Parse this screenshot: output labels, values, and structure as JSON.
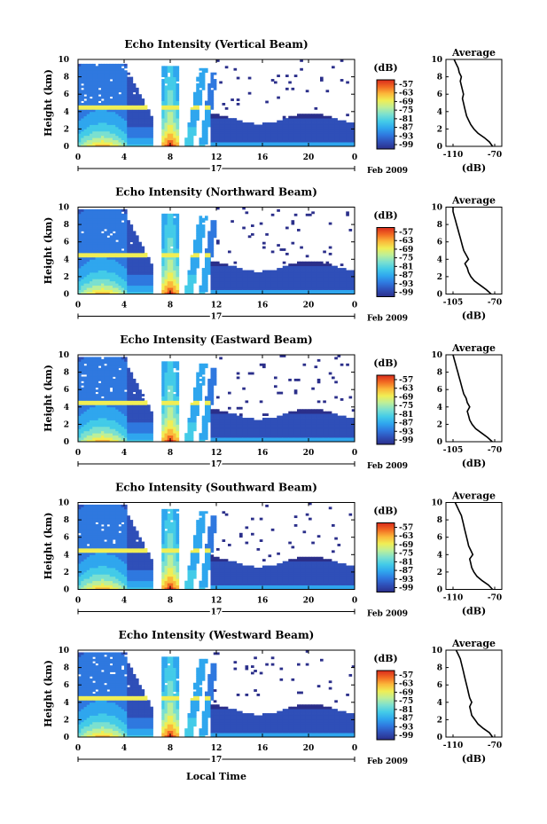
{
  "colors": {
    "scale": [
      "#2b2f8a",
      "#2f4fb8",
      "#2f78df",
      "#2fa6ee",
      "#43cbe8",
      "#7be0d0",
      "#bcef9a",
      "#f0ee55",
      "#fbb83a",
      "#f26a22",
      "#d92b1c"
    ],
    "profile": "#000000"
  },
  "chart_data": {
    "type": "heatmap",
    "panels": [
      {
        "title": "Echo Intensity (Vertical Beam)",
        "ylabel": "Height (km)",
        "x_ticks": [
          "0",
          "4",
          "8",
          "12",
          "16",
          "20",
          "0"
        ],
        "y_ticks": [
          "0",
          "2",
          "4",
          "6",
          "8",
          "10"
        ],
        "xlim": [
          0,
          24
        ],
        "ylim": [
          0,
          10
        ],
        "date_label": "17",
        "month_label": "Feb 2009",
        "colorbar": {
          "unit": "(dB)",
          "ticks": [
            "-57",
            "-63",
            "-69",
            "-75",
            "-81",
            "-87",
            "-93",
            "-99"
          ]
        },
        "profile": {
          "title": "Average",
          "xlabel": "(dB)",
          "x_ticks": [
            "-110",
            "-70"
          ],
          "y_ticks": [
            "0",
            "2",
            "4",
            "6",
            "8",
            "10"
          ],
          "xlim": [
            -110,
            -70
          ],
          "ylim": [
            0,
            10
          ],
          "x": [
            -72,
            -75,
            -80,
            -86,
            -90,
            -93,
            -95,
            -97,
            -98,
            -99,
            -100,
            -101,
            -100,
            -101,
            -102,
            -103,
            -102,
            -104,
            -105,
            -107,
            -109
          ],
          "y": [
            0.0,
            0.5,
            1.0,
            1.5,
            2.0,
            2.5,
            3.0,
            3.5,
            4.0,
            4.5,
            5.0,
            5.5,
            6.0,
            6.5,
            7.0,
            7.5,
            8.0,
            8.5,
            9.0,
            9.5,
            10.0
          ]
        }
      },
      {
        "title": "Echo Intensity (Northward Beam)",
        "ylabel": "Height (km)",
        "x_ticks": [
          "0",
          "4",
          "8",
          "12",
          "16",
          "20",
          "0"
        ],
        "y_ticks": [
          "0",
          "2",
          "4",
          "6",
          "8",
          "10"
        ],
        "xlim": [
          0,
          24
        ],
        "ylim": [
          0,
          10
        ],
        "date_label": "17",
        "month_label": "Feb 2009",
        "colorbar": {
          "unit": "(dB)",
          "ticks": [
            "-57",
            "-63",
            "-69",
            "-75",
            "-81",
            "-87",
            "-93",
            "-99"
          ]
        },
        "profile": {
          "title": "Average",
          "xlabel": "(dB)",
          "x_ticks": [
            "-105",
            "-70"
          ],
          "y_ticks": [
            "0",
            "2",
            "4",
            "6",
            "8",
            "10"
          ],
          "xlim": [
            -105,
            -70
          ],
          "ylim": [
            0,
            10
          ],
          "x": [
            -73,
            -77,
            -82,
            -87,
            -90,
            -92,
            -93,
            -95,
            -92,
            -94,
            -96,
            -97,
            -98,
            -99,
            -100,
            -101,
            -102,
            -103,
            -104,
            -105,
            -105
          ],
          "y": [
            0.0,
            0.5,
            1.0,
            1.5,
            2.0,
            2.5,
            3.0,
            3.5,
            4.0,
            4.5,
            5.0,
            5.5,
            6.0,
            6.5,
            7.0,
            7.5,
            8.0,
            8.5,
            9.0,
            9.5,
            10.0
          ]
        }
      },
      {
        "title": "Echo Intensity (Eastward Beam)",
        "ylabel": "Height (km)",
        "x_ticks": [
          "0",
          "4",
          "8",
          "12",
          "16",
          "20",
          "0"
        ],
        "y_ticks": [
          "0",
          "2",
          "4",
          "6",
          "8",
          "10"
        ],
        "xlim": [
          0,
          24
        ],
        "ylim": [
          0,
          10
        ],
        "date_label": "17",
        "month_label": "Feb 2009",
        "colorbar": {
          "unit": "(dB)",
          "ticks": [
            "-57",
            "-63",
            "-69",
            "-75",
            "-81",
            "-87",
            "-93",
            "-99"
          ]
        },
        "profile": {
          "title": "Average",
          "xlabel": "(dB)",
          "x_ticks": [
            "-105",
            "-70"
          ],
          "y_ticks": [
            "0",
            "2",
            "4",
            "6",
            "8",
            "10"
          ],
          "xlim": [
            -105,
            -70
          ],
          "ylim": [
            0,
            10
          ],
          "x": [
            -72,
            -76,
            -81,
            -86,
            -89,
            -91,
            -92,
            -93,
            -91,
            -93,
            -94,
            -96,
            -97,
            -98,
            -99,
            -100,
            -101,
            -102,
            -103,
            -104,
            -105
          ],
          "y": [
            0.0,
            0.5,
            1.0,
            1.5,
            2.0,
            2.5,
            3.0,
            3.5,
            4.0,
            4.5,
            5.0,
            5.5,
            6.0,
            6.5,
            7.0,
            7.5,
            8.0,
            8.5,
            9.0,
            9.5,
            10.0
          ]
        }
      },
      {
        "title": "Echo Intensity (Southward Beam)",
        "ylabel": "Height (km)",
        "x_ticks": [
          "0",
          "4",
          "8",
          "12",
          "16",
          "20",
          "0"
        ],
        "y_ticks": [
          "0",
          "2",
          "4",
          "6",
          "8",
          "10"
        ],
        "xlim": [
          0,
          24
        ],
        "ylim": [
          0,
          10
        ],
        "date_label": "17",
        "month_label": "Feb 2009",
        "colorbar": {
          "unit": "(dB)",
          "ticks": [
            "-57",
            "-63",
            "-69",
            "-75",
            "-81",
            "-87",
            "-93",
            "-99"
          ]
        },
        "profile": {
          "title": "Average",
          "xlabel": "(dB)",
          "x_ticks": [
            "-110",
            "-70"
          ],
          "y_ticks": [
            "0",
            "2",
            "4",
            "6",
            "8",
            "10"
          ],
          "xlim": [
            -110,
            -70
          ],
          "ylim": [
            0,
            10
          ],
          "x": [
            -72,
            -76,
            -82,
            -87,
            -90,
            -92,
            -93,
            -94,
            -91,
            -93,
            -95,
            -96,
            -97,
            -98,
            -99,
            -100,
            -101,
            -102,
            -104,
            -106,
            -108
          ],
          "y": [
            0.0,
            0.5,
            1.0,
            1.5,
            2.0,
            2.5,
            3.0,
            3.5,
            4.0,
            4.5,
            5.0,
            5.5,
            6.0,
            6.5,
            7.0,
            7.5,
            8.0,
            8.5,
            9.0,
            9.5,
            10.0
          ]
        }
      },
      {
        "title": "Echo Intensity (Westward Beam)",
        "ylabel": "Height (km)",
        "x_ticks": [
          "0",
          "4",
          "8",
          "12",
          "16",
          "20",
          "0"
        ],
        "y_ticks": [
          "0",
          "2",
          "4",
          "6",
          "8",
          "10"
        ],
        "xlim": [
          0,
          24
        ],
        "ylim": [
          0,
          10
        ],
        "date_label": "17",
        "month_label": "Feb 2009",
        "colorbar": {
          "unit": "(dB)",
          "ticks": [
            "-57",
            "-63",
            "-69",
            "-75",
            "-81",
            "-87",
            "-93",
            "-99"
          ]
        },
        "profile": {
          "title": "Average",
          "xlabel": "(dB)",
          "x_ticks": [
            "-110",
            "-70"
          ],
          "y_ticks": [
            "0",
            "2",
            "4",
            "6",
            "8",
            "10"
          ],
          "xlim": [
            -110,
            -70
          ],
          "ylim": [
            0,
            10
          ],
          "x": [
            -72,
            -75,
            -81,
            -86,
            -89,
            -92,
            -93,
            -94,
            -92,
            -94,
            -95,
            -96,
            -97,
            -98,
            -99,
            -100,
            -101,
            -102,
            -103,
            -105,
            -107
          ],
          "y": [
            0.0,
            0.5,
            1.0,
            1.5,
            2.0,
            2.5,
            3.0,
            3.5,
            4.0,
            4.5,
            5.0,
            5.5,
            6.0,
            6.5,
            7.0,
            7.5,
            8.0,
            8.5,
            9.0,
            9.5,
            10.0
          ]
        }
      }
    ],
    "xlabel": "Local Time"
  }
}
